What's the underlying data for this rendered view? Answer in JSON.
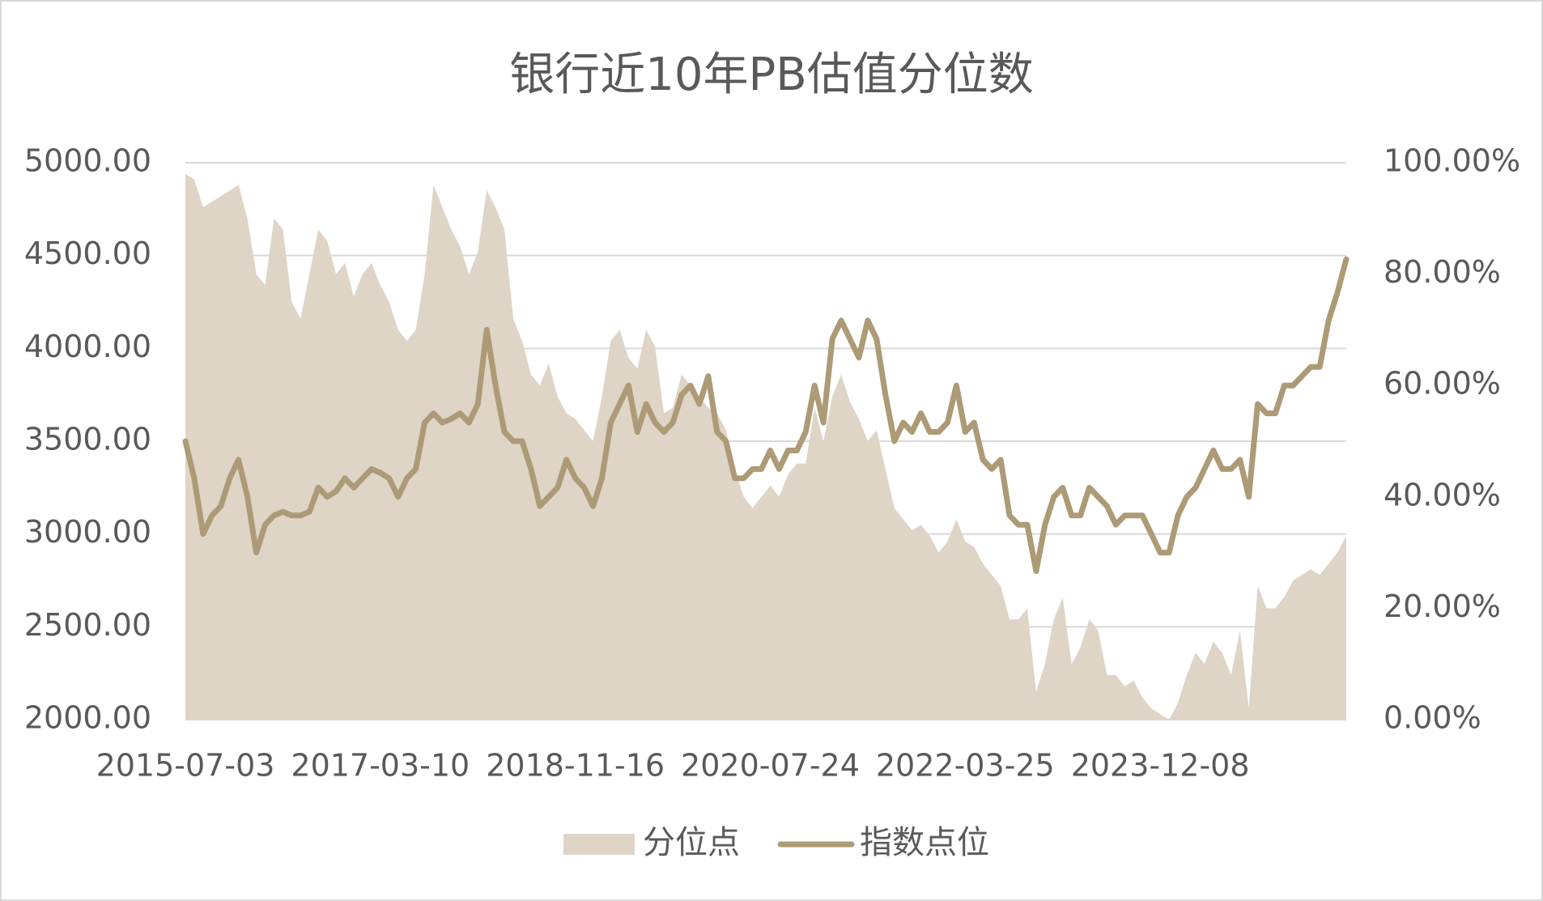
{
  "chart_data": {
    "type": "area-line",
    "title": "银行近10年PB估值分位数",
    "categories": [
      "2015-07-03",
      null,
      null,
      null,
      null,
      null,
      null,
      null,
      null,
      null,
      null,
      null,
      null,
      null,
      null,
      null,
      null,
      null,
      null,
      null,
      null,
      null,
      "2017-03-10",
      null,
      null,
      null,
      null,
      null,
      null,
      null,
      null,
      null,
      null,
      null,
      null,
      null,
      null,
      null,
      null,
      null,
      null,
      null,
      null,
      null,
      "2018-11-16",
      null,
      null,
      null,
      null,
      null,
      null,
      null,
      null,
      null,
      null,
      null,
      null,
      null,
      null,
      null,
      null,
      null,
      null,
      null,
      null,
      null,
      "2020-07-24",
      null,
      null,
      null,
      null,
      null,
      null,
      null,
      null,
      null,
      null,
      null,
      null,
      null,
      null,
      null,
      null,
      null,
      null,
      null,
      null,
      null,
      "2022-03-25",
      null,
      null,
      null,
      null,
      null,
      null,
      null,
      null,
      null,
      null,
      null,
      null,
      null,
      null,
      null,
      null,
      null,
      null,
      null,
      null,
      null,
      "2023-12-08",
      null,
      null,
      null,
      null,
      null,
      null,
      null,
      null,
      null,
      null,
      null,
      null,
      null,
      null,
      null,
      null,
      null,
      null,
      null,
      null,
      null
    ],
    "series": [
      {
        "name": "分位点",
        "kind": "area",
        "axis": "y2",
        "color": "#ded5c6",
        "values": [
          98,
          97,
          92,
          93,
          94,
          95,
          96,
          90,
          80,
          78,
          90,
          88,
          75,
          72,
          80,
          88,
          86,
          80,
          82,
          76,
          80,
          82,
          78,
          75,
          70,
          68,
          70,
          80,
          96,
          92,
          88,
          85,
          80,
          84,
          95,
          92,
          88,
          72,
          68,
          62,
          60,
          64,
          58,
          55,
          54,
          52,
          50,
          58,
          68,
          70,
          65,
          63,
          70,
          67,
          55,
          56,
          62,
          60,
          58,
          56,
          55,
          52,
          45,
          40,
          38,
          40,
          42,
          40,
          44,
          46,
          46,
          56,
          50,
          58,
          62,
          57,
          54,
          50,
          52,
          45,
          38,
          36,
          34,
          35,
          33,
          30,
          32,
          36,
          32,
          31,
          28,
          26,
          24,
          18,
          18,
          20,
          5,
          10,
          18,
          22,
          10,
          13,
          18,
          16,
          8,
          8,
          6,
          7,
          4,
          2,
          1,
          0,
          3,
          8,
          12,
          10,
          14,
          12,
          8,
          16,
          2,
          24,
          20,
          20,
          22,
          25,
          26,
          27,
          26,
          28,
          30,
          33
        ]
      },
      {
        "name": "指数点位",
        "kind": "line",
        "axis": "y",
        "color": "#ad9a76",
        "values": [
          3500,
          3300,
          3000,
          3100,
          3150,
          3300,
          3400,
          3200,
          2900,
          3050,
          3100,
          3120,
          3100,
          3100,
          3120,
          3250,
          3200,
          3230,
          3300,
          3250,
          3300,
          3350,
          3330,
          3300,
          3200,
          3300,
          3350,
          3600,
          3650,
          3600,
          3620,
          3650,
          3600,
          3700,
          4100,
          3800,
          3550,
          3500,
          3500,
          3350,
          3150,
          3200,
          3250,
          3400,
          3300,
          3250,
          3150,
          3300,
          3600,
          3700,
          3800,
          3550,
          3700,
          3600,
          3550,
          3600,
          3750,
          3800,
          3700,
          3850,
          3550,
          3500,
          3300,
          3300,
          3350,
          3350,
          3450,
          3350,
          3450,
          3450,
          3550,
          3800,
          3600,
          4050,
          4150,
          4050,
          3950,
          4150,
          4050,
          3750,
          3500,
          3600,
          3550,
          3650,
          3550,
          3550,
          3600,
          3800,
          3550,
          3600,
          3400,
          3350,
          3400,
          3100,
          3050,
          3050,
          2800,
          3050,
          3200,
          3250,
          3100,
          3100,
          3250,
          3200,
          3150,
          3050,
          3100,
          3100,
          3100,
          3000,
          2900,
          2900,
          3100,
          3200,
          3250,
          3350,
          3450,
          3350,
          3350,
          3400,
          3200,
          3700,
          3650,
          3650,
          3800,
          3800,
          3850,
          3900,
          3900,
          4150,
          4300,
          4480
        ]
      }
    ],
    "ylim": [
      2000,
      5000
    ],
    "yticks": [
      {
        "value": 2000,
        "label": "2000.00"
      },
      {
        "value": 2500,
        "label": "2500.00"
      },
      {
        "value": 3000,
        "label": "3000.00"
      },
      {
        "value": 3500,
        "label": "3500.00"
      },
      {
        "value": 4000,
        "label": "4000.00"
      },
      {
        "value": 4500,
        "label": "4500.00"
      },
      {
        "value": 5000,
        "label": "5000.00"
      }
    ],
    "y2lim": [
      0,
      100
    ],
    "y2ticks": [
      {
        "value": 0,
        "label": "0.00%"
      },
      {
        "value": 20,
        "label": "20.00%"
      },
      {
        "value": 40,
        "label": "40.00%"
      },
      {
        "value": 60,
        "label": "60.00%"
      },
      {
        "value": 80,
        "label": "80.00%"
      },
      {
        "value": 100,
        "label": "100.00%"
      }
    ],
    "grid": true,
    "legend": "bottom"
  }
}
